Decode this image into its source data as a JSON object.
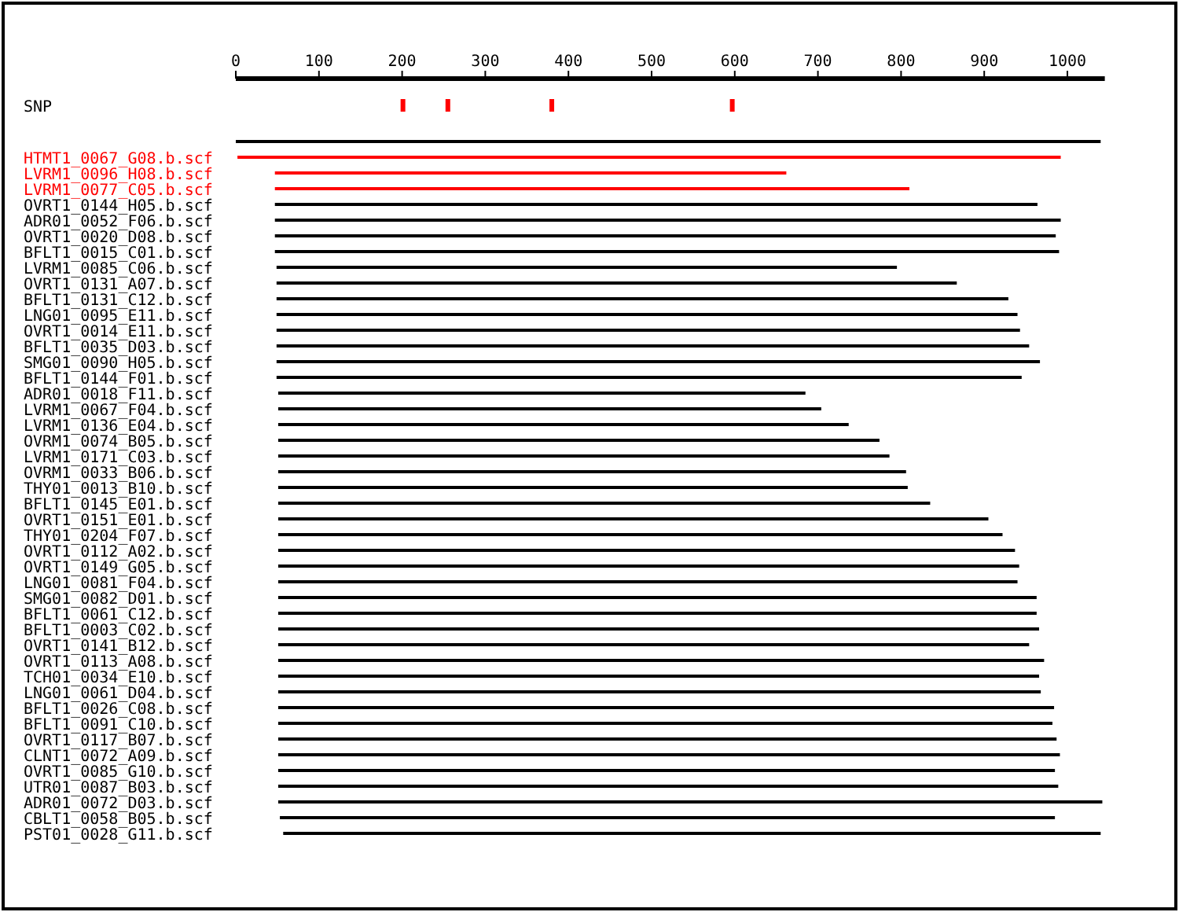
{
  "chart_data": {
    "type": "bar",
    "orientation": "horizontal",
    "categories": [
      "SNP",
      null,
      "HTMT1_0067_G08.b.scf",
      "LVRM1_0096_H08.b.scf",
      "LVRM1_0077_C05.b.scf",
      "OVRT1_0144_H05.b.scf",
      "ADR01_0052_F06.b.scf",
      "OVRT1_0020_D08.b.scf",
      "BFLT1_0015_C01.b.scf",
      "LVRM1_0085_C06.b.scf",
      "OVRT1_0131_A07.b.scf",
      "BFLT1_0131_C12.b.scf",
      "LNG01_0095_E11.b.scf",
      "OVRT1_0014_E11.b.scf",
      "BFLT1_0035_D03.b.scf",
      "SMG01_0090_H05.b.scf",
      "BFLT1_0144_F01.b.scf",
      "ADR01_0018_F11.b.scf",
      "LVRM1_0067_F04.b.scf",
      "LVRM1_0136_E04.b.scf",
      "OVRM1_0074_B05.b.scf",
      "LVRM1_0171_C03.b.scf",
      "OVRM1_0033_B06.b.scf",
      "THY01_0013_B10.b.scf",
      "BFLT1_0145_E01.b.scf",
      "OVRT1_0151_E01.b.scf",
      "THY01_0204_F07.b.scf",
      "OVRT1_0112_A02.b.scf",
      "OVRT1_0149_G05.b.scf",
      "LNG01_0081_F04.b.scf",
      "SMG01_0082_D01.b.scf",
      "BFLT1_0061_C12.b.scf",
      "BFLT1_0003_C02.b.scf",
      "OVRT1_0141_B12.b.scf",
      "OVRT1_0113_A08.b.scf",
      "TCH01_0034_E10.b.scf",
      "LNG01_0061_D04.b.scf",
      "BFLT1_0026_C08.b.scf",
      "BFLT1_0091_C10.b.scf",
      "OVRT1_0117_B07.b.scf",
      "CLNT1_0072_A09.b.scf",
      "OVRT1_0085_G10.b.scf",
      "UTR01_0087_B03.b.scf",
      "ADR01_0072_D03.b.scf",
      "CBLT1_0058_B05.b.scf",
      "PST01_0028_G11.b.scf"
    ],
    "base": [
      null,
      0,
      2,
      47,
      47,
      47,
      47,
      47,
      47,
      49,
      49,
      49,
      49,
      49,
      49,
      49,
      49,
      51,
      51,
      51,
      51,
      51,
      51,
      51,
      51,
      51,
      51,
      51,
      51,
      51,
      51,
      51,
      51,
      51,
      51,
      51,
      51,
      51,
      51,
      51,
      51,
      51,
      51,
      51,
      53,
      57
    ],
    "values": [
      null,
      1040,
      990,
      615,
      763,
      917,
      945,
      939,
      943,
      746,
      818,
      880,
      891,
      894,
      905,
      918,
      896,
      634,
      653,
      686,
      723,
      735,
      755,
      757,
      784,
      854,
      871,
      886,
      891,
      889,
      912,
      912,
      915,
      903,
      921,
      915,
      917,
      933,
      931,
      936,
      940,
      934,
      938,
      991,
      932,
      983
    ],
    "colors": [
      "#000000",
      "#000000",
      "#ff0000",
      "#ff0000",
      "#ff0000",
      "#000000",
      "#000000",
      "#000000",
      "#000000",
      "#000000",
      "#000000",
      "#000000",
      "#000000",
      "#000000",
      "#000000",
      "#000000",
      "#000000",
      "#000000",
      "#000000",
      "#000000",
      "#000000",
      "#000000",
      "#000000",
      "#000000",
      "#000000",
      "#000000",
      "#000000",
      "#000000",
      "#000000",
      "#000000",
      "#000000",
      "#000000",
      "#000000",
      "#000000",
      "#000000",
      "#000000",
      "#000000",
      "#000000",
      "#000000",
      "#000000",
      "#000000",
      "#000000",
      "#000000",
      "#000000",
      "#000000",
      "#000000"
    ],
    "series": [
      {
        "type": "scatter",
        "color": "#ff0000",
        "x": [
          "SNP",
          "SNP",
          "SNP",
          "SNP"
        ],
        "values": [
          201,
          255,
          380,
          597
        ]
      }
    ],
    "xlim": [
      0,
      1045
    ],
    "xticks": [
      0,
      100,
      200,
      300,
      400,
      500,
      600,
      700,
      800,
      900,
      1000
    ]
  }
}
